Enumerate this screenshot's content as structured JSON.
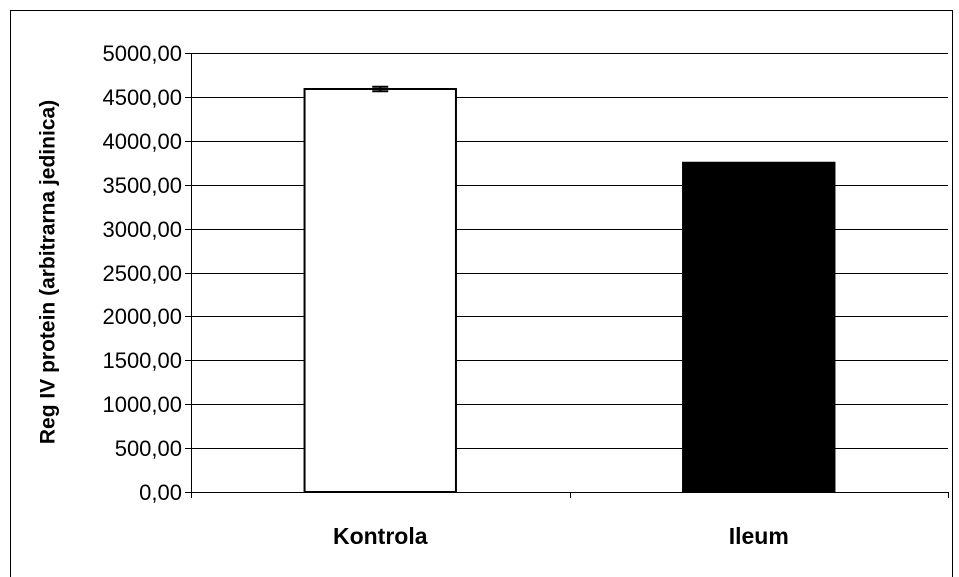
{
  "chart_data": {
    "type": "bar",
    "categories": [
      "Kontrola",
      "Ileum"
    ],
    "values": [
      4590,
      3750
    ],
    "errors": [
      25,
      null
    ],
    "ylabel": "Reg IV protein (arbitrarna jedinica)",
    "ylim": [
      0,
      5000
    ],
    "yticks": [
      "0,00",
      "500,00",
      "1000,00",
      "1500,00",
      "2000,00",
      "2500,00",
      "3000,00",
      "3500,00",
      "4000,00",
      "4500,00",
      "5000,00"
    ],
    "grid": true,
    "legend": "none",
    "colors": [
      "#ffffff",
      "#000000"
    ],
    "bar_outline": "#000000"
  }
}
